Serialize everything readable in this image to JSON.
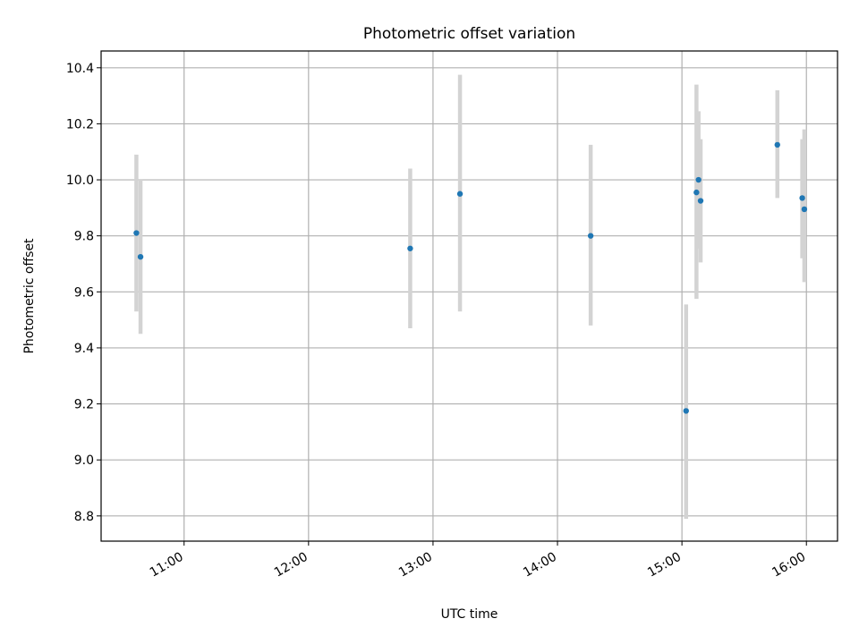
{
  "chart_data": {
    "type": "scatter",
    "title": "Photometric offset variation",
    "xlabel": "UTC time",
    "ylabel": "Photometric offset",
    "xlim": [
      "10:20",
      "16:15"
    ],
    "ylim": [
      8.71,
      10.46
    ],
    "x_ticks": [
      "11:00",
      "12:00",
      "13:00",
      "14:00",
      "15:00",
      "16:00"
    ],
    "y_ticks": [
      "8.8",
      "9.0",
      "9.2",
      "9.4",
      "9.6",
      "9.8",
      "10.0",
      "10.2",
      "10.4"
    ],
    "grid": true,
    "legend": "none",
    "colors": {
      "points": "#1f77b4",
      "errorbars": "#d3d3d3",
      "grid": "#b0b0b0"
    },
    "points": [
      {
        "x": "10:37",
        "y": 9.81,
        "ylo": 9.53,
        "yhi": 10.09
      },
      {
        "x": "10:39",
        "y": 9.725,
        "ylo": 9.45,
        "yhi": 10.0
      },
      {
        "x": "12:49",
        "y": 9.755,
        "ylo": 9.47,
        "yhi": 10.04
      },
      {
        "x": "13:13",
        "y": 9.95,
        "ylo": 9.53,
        "yhi": 10.375
      },
      {
        "x": "14:16",
        "y": 9.8,
        "ylo": 9.48,
        "yhi": 10.125
      },
      {
        "x": "15:02",
        "y": 9.175,
        "ylo": 8.79,
        "yhi": 9.555
      },
      {
        "x": "15:07",
        "y": 9.955,
        "ylo": 9.575,
        "yhi": 10.34
      },
      {
        "x": "15:08",
        "y": 10.0,
        "ylo": 9.755,
        "yhi": 10.245
      },
      {
        "x": "15:09",
        "y": 9.925,
        "ylo": 9.705,
        "yhi": 10.145
      },
      {
        "x": "15:46",
        "y": 10.125,
        "ylo": 9.935,
        "yhi": 10.32
      },
      {
        "x": "15:58",
        "y": 9.935,
        "ylo": 9.72,
        "yhi": 10.145
      },
      {
        "x": "15:59",
        "y": 9.895,
        "ylo": 9.635,
        "yhi": 10.18
      }
    ]
  }
}
